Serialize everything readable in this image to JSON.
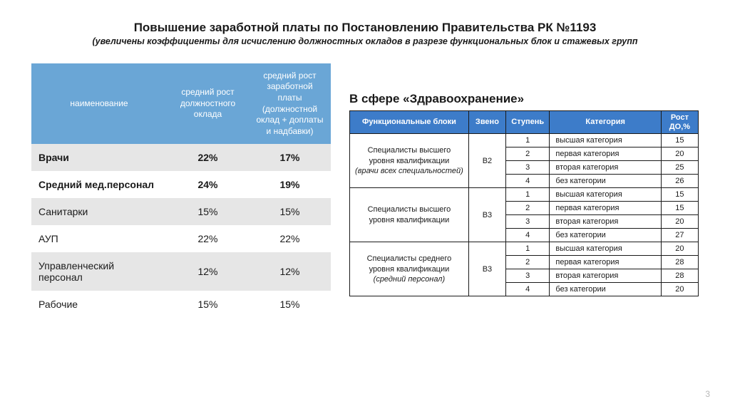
{
  "colors": {
    "left_header_bg": "#6aa6d6",
    "left_row_alt": "#e6e6e6",
    "left_row_plain": "#ffffff",
    "right_header_bg": "#3d7cc9",
    "border": "#1a1a1a"
  },
  "title": "Повышение заработной платы по Постановлению Правительства РК №1193",
  "subtitle": "(увеличены коэффициенты для исчислению должностных окладов в разрезе функциональных блок и стажевых групп",
  "left": {
    "headers": {
      "name": "наименование",
      "col1": "средний рост должностного оклада",
      "col2": "средний рост заработной платы (должностной оклад + доплаты и надбавки)"
    },
    "rows": [
      {
        "name": "Врачи",
        "v1": "22%",
        "v2": "17%",
        "bold": true,
        "alt": true
      },
      {
        "name": "Средний мед.персонал",
        "v1": "24%",
        "v2": "19%",
        "bold": true,
        "alt": false
      },
      {
        "name": "Санитарки",
        "v1": "15%",
        "v2": "15%",
        "bold": false,
        "alt": true
      },
      {
        "name": "АУП",
        "v1": "22%",
        "v2": "22%",
        "bold": false,
        "alt": false
      },
      {
        "name": "Управленческий персонал",
        "v1": "12%",
        "v2": "12%",
        "bold": false,
        "alt": true
      },
      {
        "name": "Рабочие",
        "v1": "15%",
        "v2": "15%",
        "bold": false,
        "alt": false
      }
    ]
  },
  "right": {
    "heading": "В сфере «Здравоохранение»",
    "headers": {
      "block": "Функциональные блоки",
      "zveno": "Звено",
      "step": "Ступень",
      "cat": "Категория",
      "rost": "Рост ДО,%"
    },
    "col_widths": {
      "block": "160px",
      "zveno": "50px",
      "step": "45px",
      "cat": "150px",
      "rost": "50px"
    },
    "groups": [
      {
        "block_main": "Специалисты высшего уровня квалификации",
        "block_sub": "(врачи всех специальностей)",
        "zveno": "B2",
        "rows": [
          {
            "step": "1",
            "cat": "высшая категория",
            "rost": "15"
          },
          {
            "step": "2",
            "cat": "первая категория",
            "rost": "20"
          },
          {
            "step": "3",
            "cat": "вторая категория",
            "rost": "25"
          },
          {
            "step": "4",
            "cat": "без категории",
            "rost": "26"
          }
        ]
      },
      {
        "block_main": "Специалисты высшего уровня квалификации",
        "block_sub": "",
        "zveno": "B3",
        "rows": [
          {
            "step": "1",
            "cat": "высшая категория",
            "rost": "15"
          },
          {
            "step": "2",
            "cat": "первая категория",
            "rost": "15"
          },
          {
            "step": "3",
            "cat": "вторая категория",
            "rost": "20"
          },
          {
            "step": "4",
            "cat": "без категории",
            "rost": "27"
          }
        ]
      },
      {
        "block_main": "Специалисты среднего уровня квалификации",
        "block_sub": "(средний персонал)",
        "zveno": "B3",
        "rows": [
          {
            "step": "1",
            "cat": "высшая категория",
            "rost": "20"
          },
          {
            "step": "2",
            "cat": "первая категория",
            "rost": "28"
          },
          {
            "step": "3",
            "cat": "вторая категория",
            "rost": "28"
          },
          {
            "step": "4",
            "cat": "без категории",
            "rost": "20"
          }
        ]
      }
    ]
  },
  "page_number": "3"
}
